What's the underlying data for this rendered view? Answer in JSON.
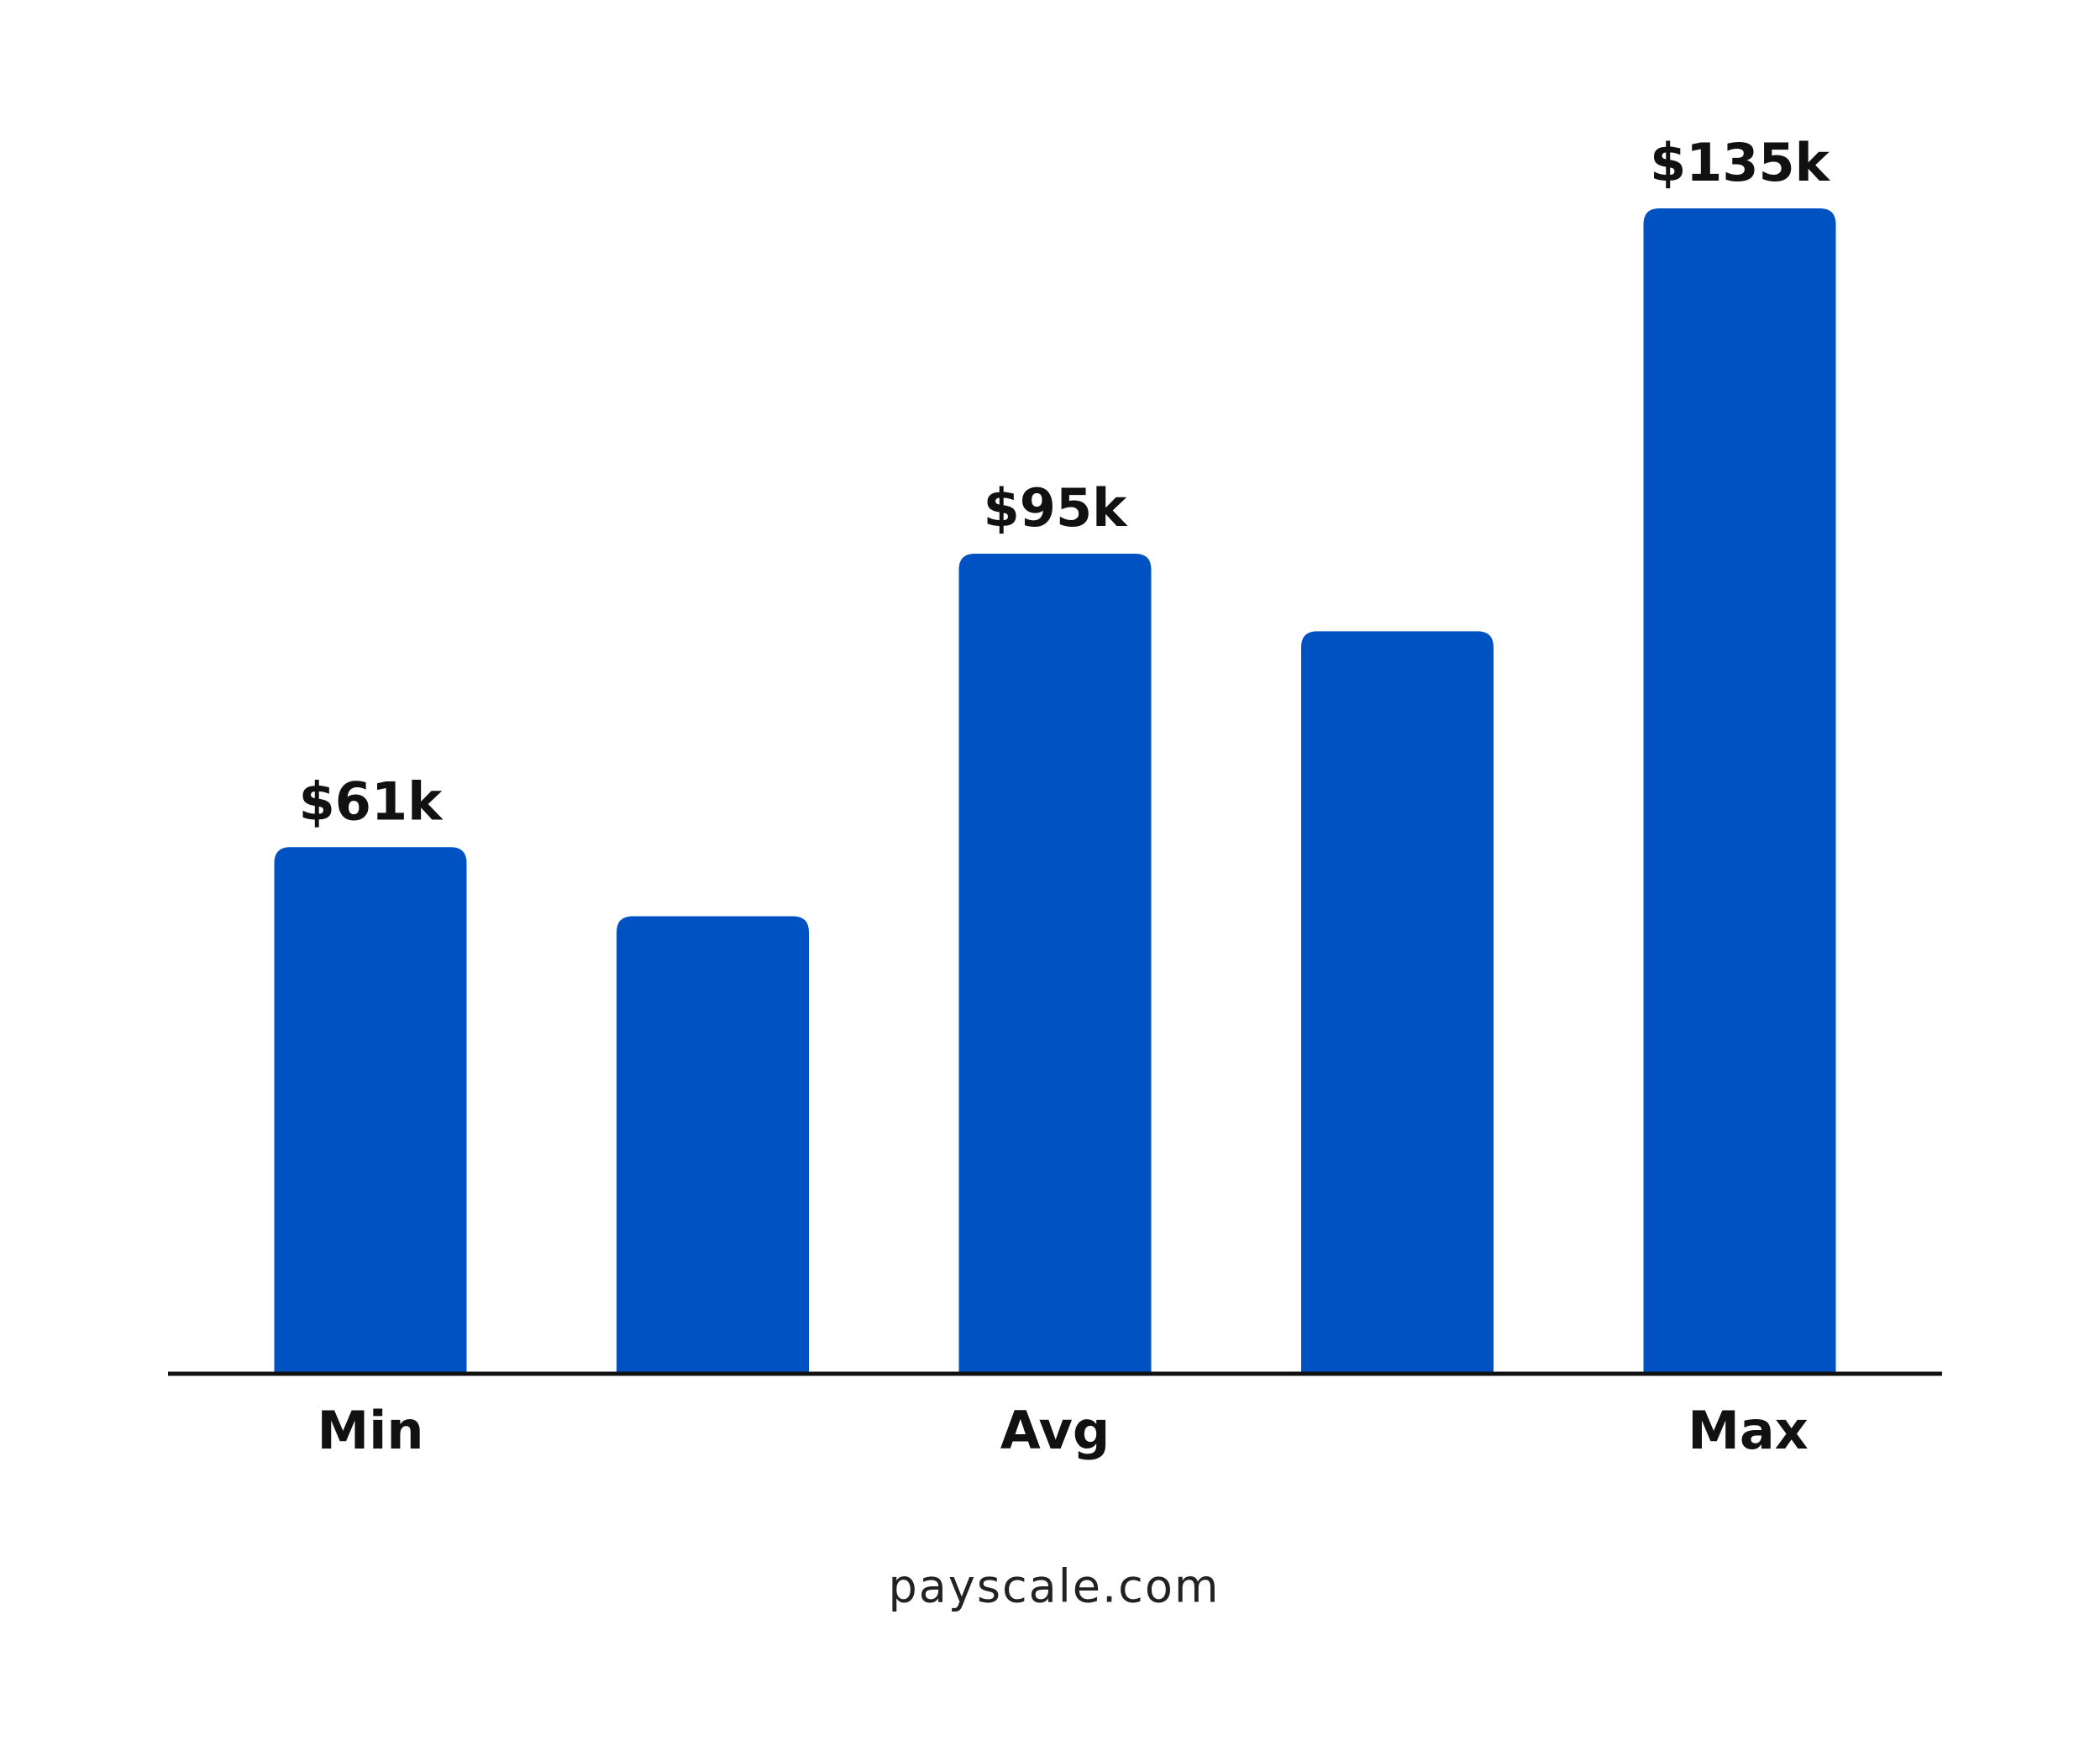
{
  "chart_data": {
    "type": "bar",
    "categories": [
      "Min",
      null,
      "Avg",
      null,
      "Max"
    ],
    "values": [
      61,
      53,
      95,
      86,
      135
    ],
    "value_labels": [
      "$61k",
      null,
      "$95k",
      null,
      "$135k"
    ],
    "color": "#0052c2",
    "source": "payscale.com"
  }
}
